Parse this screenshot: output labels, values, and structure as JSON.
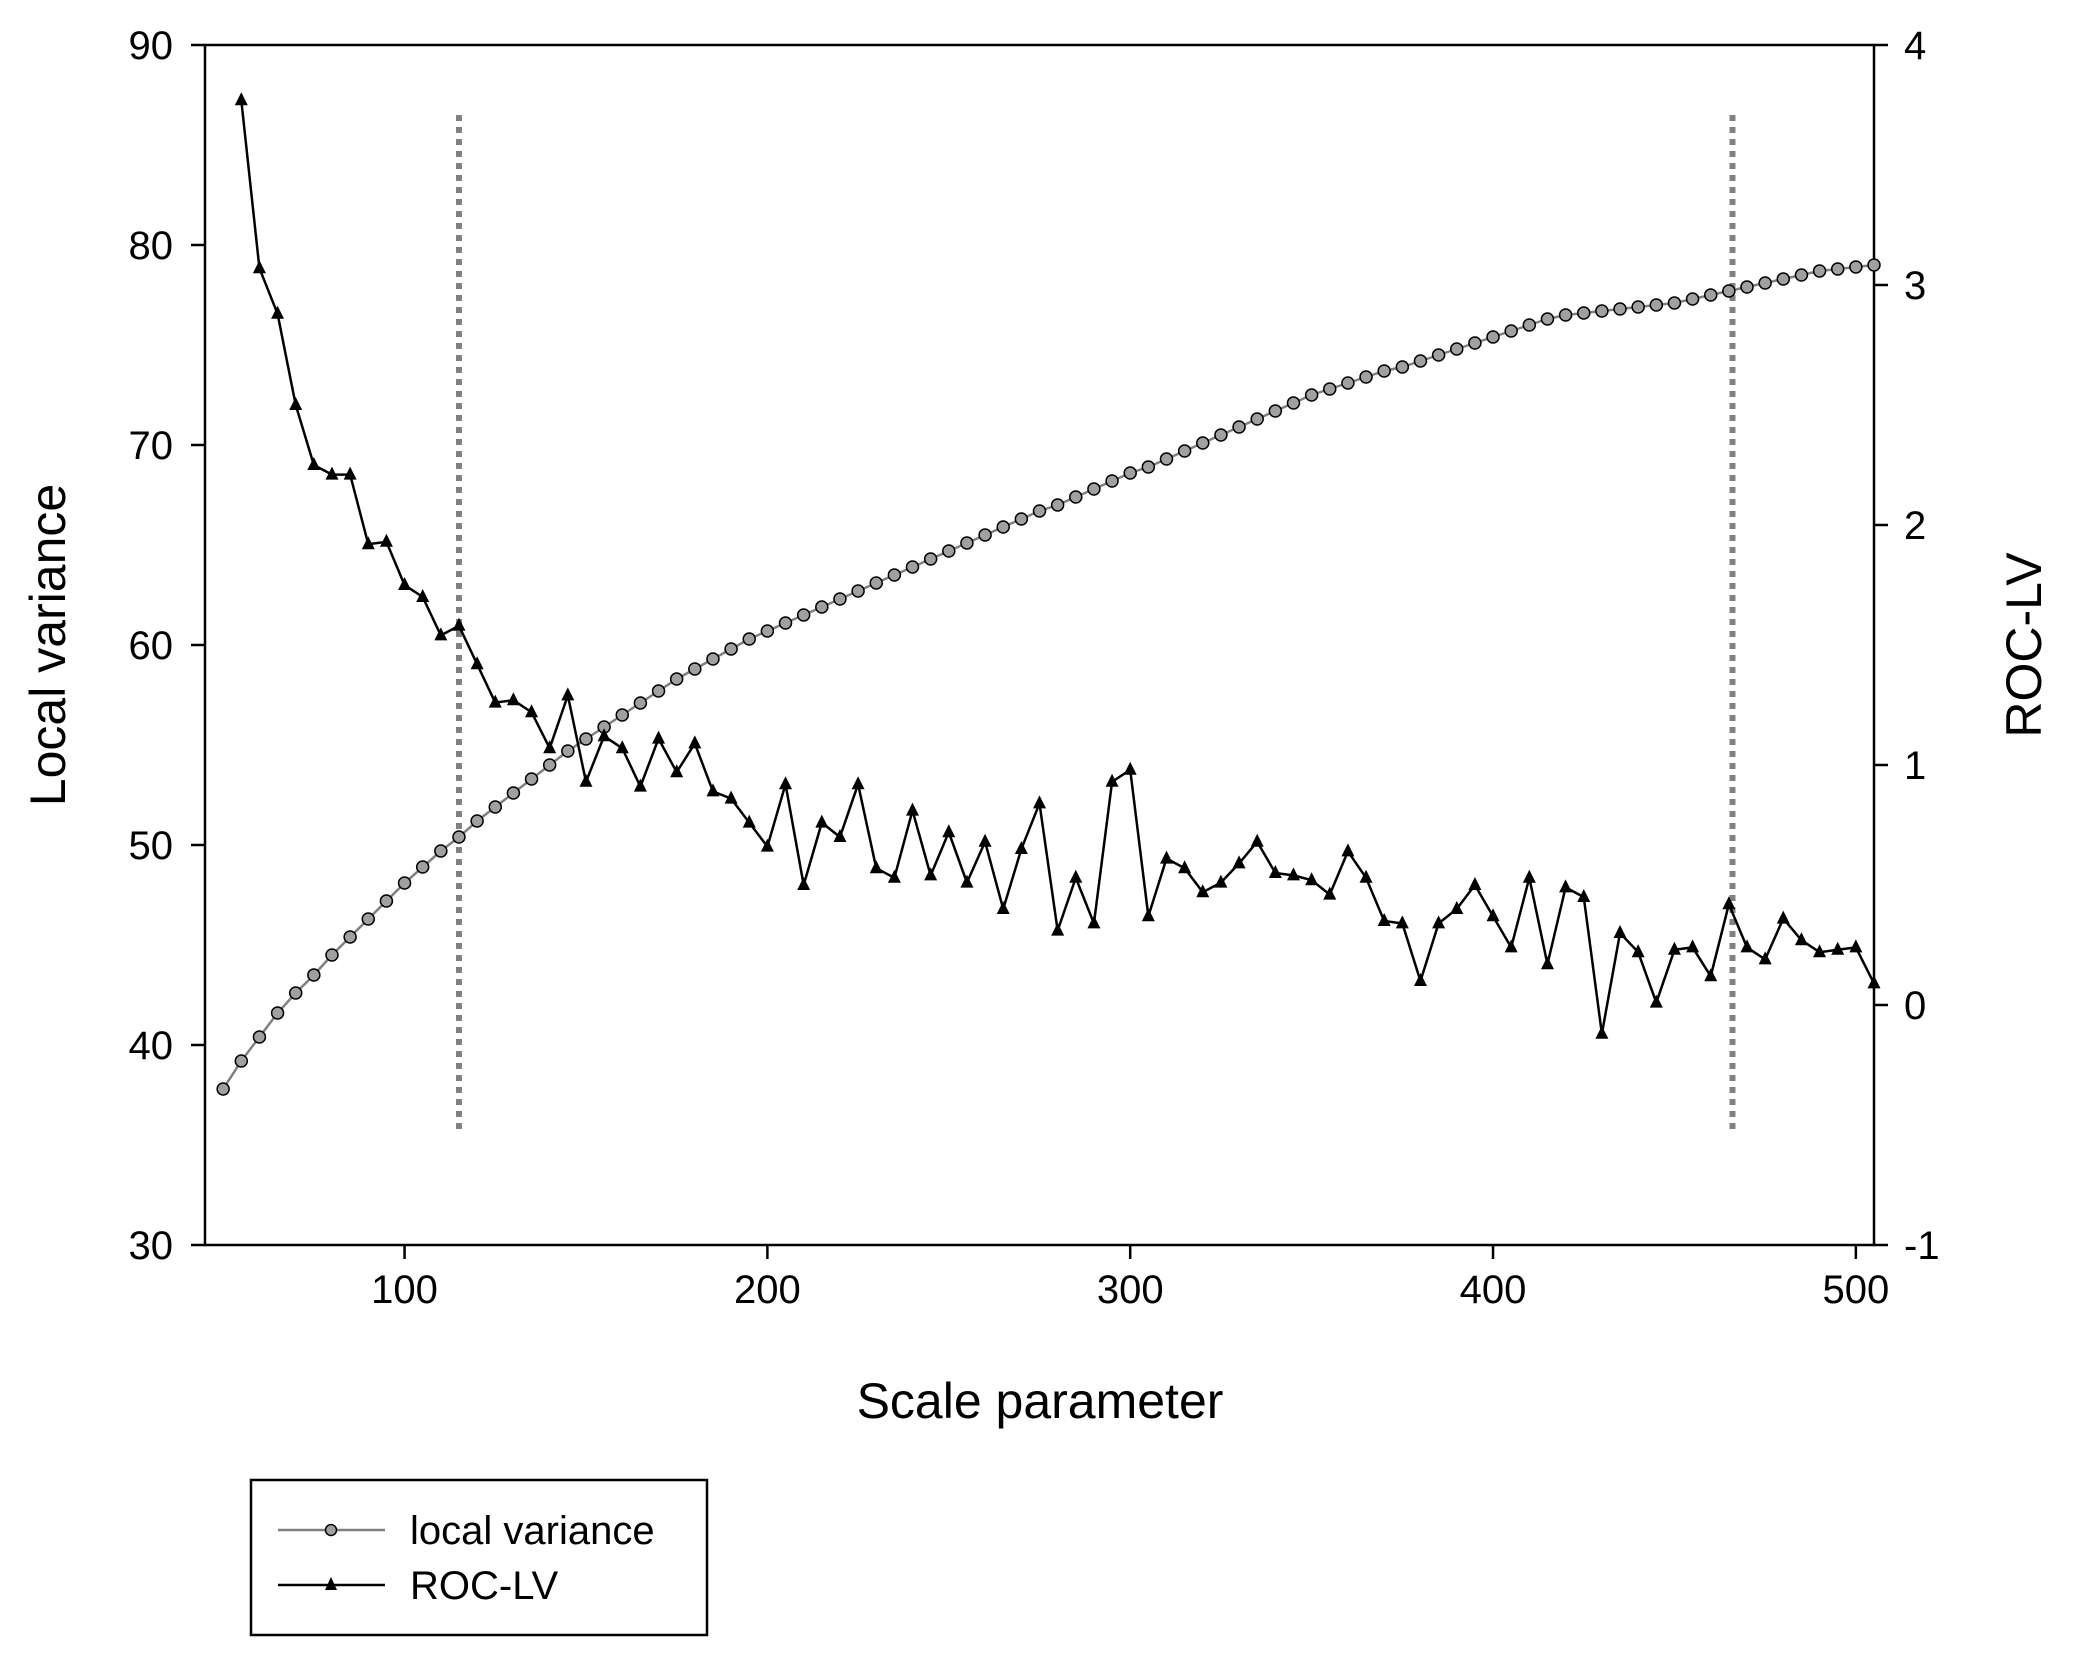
{
  "chart_data": {
    "type": "line",
    "xlabel": "Scale parameter",
    "ylabel_left": "Local variance",
    "ylabel_right": "ROC-LV",
    "xlim": [
      45,
      505
    ],
    "ylim_left": [
      30,
      90
    ],
    "ylim_right": [
      -1,
      4
    ],
    "x_ticks": [
      100,
      200,
      300,
      400,
      500
    ],
    "y_ticks_left": [
      30,
      40,
      50,
      60,
      70,
      80,
      90
    ],
    "y_ticks_right": [
      -1,
      0,
      1,
      2,
      3,
      4
    ],
    "grid": false,
    "legend_placement": "bottom-left",
    "reference_lines_x": [
      115,
      466
    ],
    "colors": {
      "local_variance": "#808080",
      "roc_lv": "#000000",
      "reference": "#808080"
    },
    "series": [
      {
        "name": "local variance",
        "axis": "left",
        "marker": "circle",
        "x": [
          50,
          55,
          60,
          65,
          70,
          75,
          80,
          85,
          90,
          95,
          100,
          105,
          110,
          115,
          120,
          125,
          130,
          135,
          140,
          145,
          150,
          155,
          160,
          165,
          170,
          175,
          180,
          185,
          190,
          195,
          200,
          205,
          210,
          215,
          220,
          225,
          230,
          235,
          240,
          245,
          250,
          255,
          260,
          265,
          270,
          275,
          280,
          285,
          290,
          295,
          300,
          305,
          310,
          315,
          320,
          325,
          330,
          335,
          340,
          345,
          350,
          355,
          360,
          365,
          370,
          375,
          380,
          385,
          390,
          395,
          400,
          405,
          410,
          415,
          420,
          425,
          430,
          435,
          440,
          445,
          450,
          455,
          460,
          465,
          470,
          475,
          480,
          485,
          490,
          495,
          500,
          505
        ],
        "values": [
          37.8,
          39.2,
          40.4,
          41.6,
          42.6,
          43.5,
          44.5,
          45.4,
          46.3,
          47.2,
          48.1,
          48.9,
          49.7,
          50.4,
          51.2,
          51.9,
          52.6,
          53.3,
          54.0,
          54.7,
          55.3,
          55.9,
          56.5,
          57.1,
          57.7,
          58.3,
          58.8,
          59.3,
          59.8,
          60.3,
          60.7,
          61.1,
          61.5,
          61.9,
          62.3,
          62.7,
          63.1,
          63.5,
          63.9,
          64.3,
          64.7,
          65.1,
          65.5,
          65.9,
          66.3,
          66.7,
          67.0,
          67.4,
          67.8,
          68.2,
          68.6,
          68.9,
          69.3,
          69.7,
          70.1,
          70.5,
          70.9,
          71.3,
          71.7,
          72.1,
          72.5,
          72.8,
          73.1,
          73.4,
          73.7,
          73.9,
          74.2,
          74.5,
          74.8,
          75.1,
          75.4,
          75.7,
          76.0,
          76.3,
          76.5,
          76.6,
          76.7,
          76.8,
          76.9,
          77.0,
          77.1,
          77.3,
          77.5,
          77.7,
          77.9,
          78.1,
          78.3,
          78.5,
          78.7,
          78.8,
          78.9,
          79.0
        ]
      },
      {
        "name": "ROC-LV",
        "axis": "right",
        "marker": "triangle",
        "x": [
          55,
          60,
          65,
          70,
          75,
          80,
          85,
          90,
          95,
          100,
          105,
          110,
          115,
          120,
          125,
          130,
          135,
          140,
          145,
          150,
          155,
          160,
          165,
          170,
          175,
          180,
          185,
          190,
          195,
          200,
          205,
          210,
          215,
          220,
          225,
          230,
          235,
          240,
          245,
          250,
          255,
          260,
          265,
          270,
          275,
          280,
          285,
          290,
          295,
          300,
          305,
          310,
          315,
          320,
          325,
          330,
          335,
          340,
          345,
          350,
          355,
          360,
          365,
          370,
          375,
          380,
          385,
          390,
          395,
          400,
          405,
          410,
          415,
          420,
          425,
          430,
          435,
          440,
          445,
          450,
          455,
          460,
          465,
          470,
          475,
          480,
          485,
          490,
          495,
          500,
          505
        ],
        "values": [
          3.77,
          3.07,
          2.88,
          2.5,
          2.25,
          2.21,
          2.21,
          1.92,
          1.93,
          1.75,
          1.7,
          1.54,
          1.58,
          1.42,
          1.26,
          1.27,
          1.22,
          1.07,
          1.29,
          0.93,
          1.12,
          1.07,
          0.91,
          1.11,
          0.97,
          1.09,
          0.89,
          0.86,
          0.76,
          0.66,
          0.92,
          0.5,
          0.76,
          0.7,
          0.92,
          0.57,
          0.53,
          0.81,
          0.54,
          0.72,
          0.51,
          0.68,
          0.4,
          0.65,
          0.84,
          0.31,
          0.53,
          0.34,
          0.93,
          0.98,
          0.37,
          0.61,
          0.57,
          0.47,
          0.51,
          0.59,
          0.68,
          0.55,
          0.54,
          0.52,
          0.46,
          0.64,
          0.53,
          0.35,
          0.34,
          0.1,
          0.34,
          0.4,
          0.5,
          0.37,
          0.24,
          0.53,
          0.17,
          0.49,
          0.45,
          -0.12,
          0.3,
          0.22,
          0.01,
          0.23,
          0.24,
          0.12,
          0.42,
          0.24,
          0.19,
          0.36,
          0.27,
          0.22,
          0.23,
          0.24,
          0.09
        ]
      }
    ]
  }
}
